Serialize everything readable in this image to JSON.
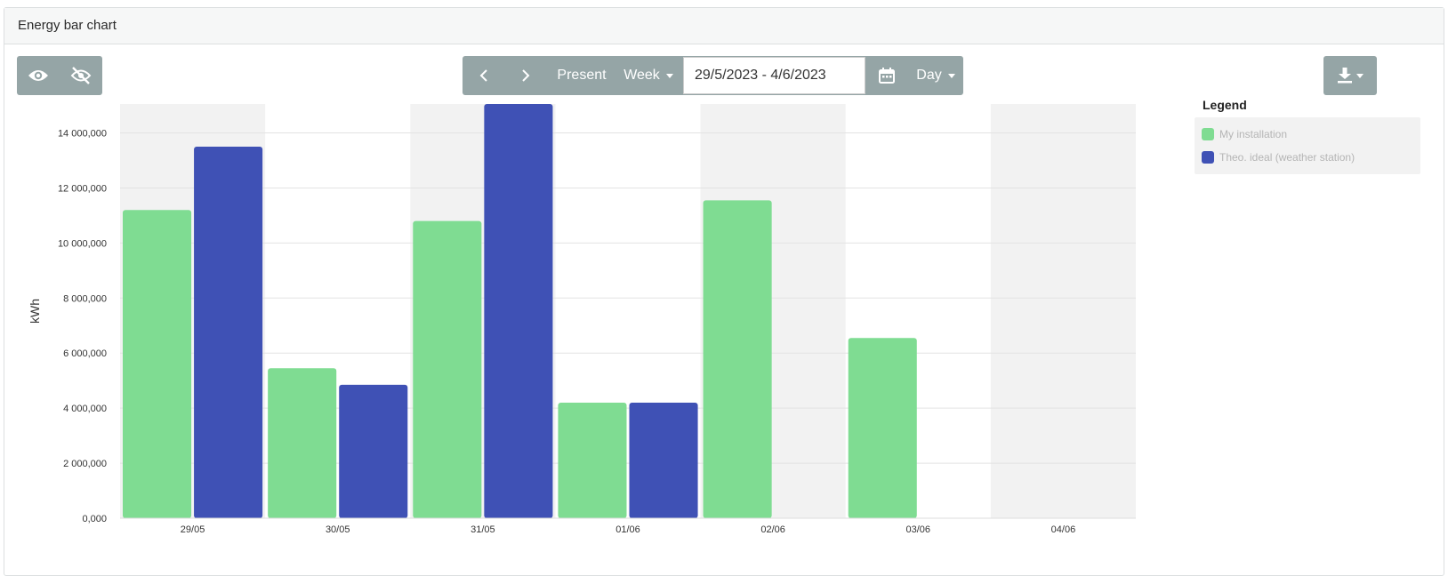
{
  "panel": {
    "title": "Energy bar chart"
  },
  "toolbar": {
    "visibility_icons": [
      "eye-icon",
      "eye-slash-icon"
    ],
    "nav_prev_icon": "chevron-left-icon",
    "nav_next_icon": "chevron-right-icon",
    "present_label": "Present",
    "period_label": "Week",
    "date_range": "29/5/2023 - 4/6/2023",
    "calendar_icon": "calendar-icon",
    "granularity_label": "Day",
    "download_icon": "download-icon"
  },
  "colors": {
    "my_installation": "#7fdc92",
    "theo_ideal": "#3f51b5",
    "band": "#f2f2f2",
    "button_bg": "#95a5a6"
  },
  "legend": {
    "title": "Legend",
    "items": [
      {
        "label": "My installation",
        "color": "#7fdc92"
      },
      {
        "label": "Theo. ideal (weather station)",
        "color": "#3f51b5"
      }
    ]
  },
  "chart_data": {
    "type": "bar",
    "categories": [
      "29/05",
      "30/05",
      "31/05",
      "01/06",
      "02/06",
      "03/06",
      "04/06"
    ],
    "series": [
      {
        "name": "My installation",
        "values": [
          11200000,
          5450000,
          10800000,
          4200000,
          11550000,
          6550000,
          null
        ]
      },
      {
        "name": "Theo. ideal (weather station)",
        "values": [
          13500000,
          4850000,
          15050000,
          4200000,
          null,
          null,
          null
        ]
      }
    ],
    "ylabel": "kWh",
    "xlabel": "",
    "ylim": [
      0,
      15050000
    ],
    "yticks": [
      0,
      2000000,
      4000000,
      6000000,
      8000000,
      10000000,
      12000000,
      14000000
    ],
    "ytick_labels": [
      "0,000",
      "2 000,000",
      "4 000,000",
      "6 000,000",
      "8 000,000",
      "10 000,000",
      "12 000,000",
      "14 000,000"
    ],
    "grid": true,
    "alternating_bands": true,
    "legend_position": "right"
  }
}
